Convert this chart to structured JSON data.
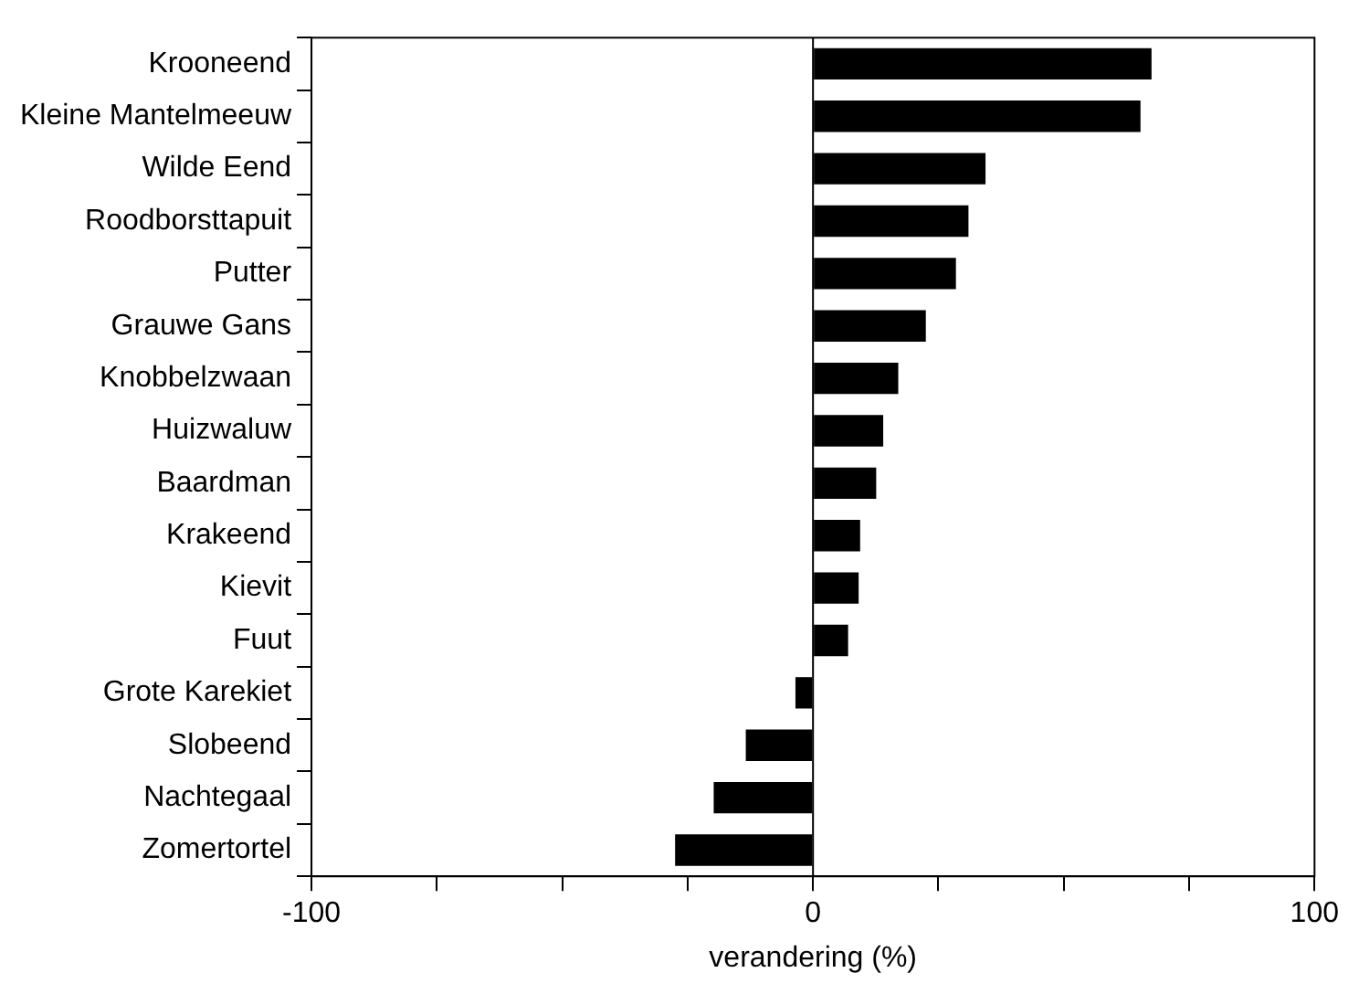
{
  "chart_data": {
    "type": "bar",
    "orientation": "horizontal",
    "xlabel": "verandering (%)",
    "categories": [
      "Krooneend",
      "Kleine Mantelmeeuw",
      "Wilde Eend",
      "Roodborsttapuit",
      "Putter",
      "Grauwe Gans",
      "Knobbelzwaan",
      "Huizwaluw",
      "Baardman",
      "Krakeend",
      "Kievit",
      "Fuut",
      "Grote Karekiet",
      "Slobeend",
      "Nachtegaal",
      "Zomertortel"
    ],
    "values": [
      67.5,
      65.3,
      34.4,
      31,
      28.5,
      22.5,
      17,
      14,
      12.6,
      9.4,
      9.1,
      7,
      -3.5,
      -13.4,
      -19.8,
      -27.5
    ],
    "color": "#000000",
    "xlim": [
      -100,
      100
    ],
    "xticks": [
      -100,
      {
        "value": -75,
        "label": null
      },
      {
        "value": -50,
        "label": null
      },
      {
        "value": -25,
        "label": null
      },
      0,
      {
        "value": 25,
        "label": null
      },
      {
        "value": 50,
        "label": null
      },
      {
        "value": 75,
        "label": null
      },
      100
    ],
    "ref_lines": [
      {
        "axis": "x",
        "value": 0,
        "color": "#000000"
      }
    ],
    "grid": false,
    "legend": false
  }
}
